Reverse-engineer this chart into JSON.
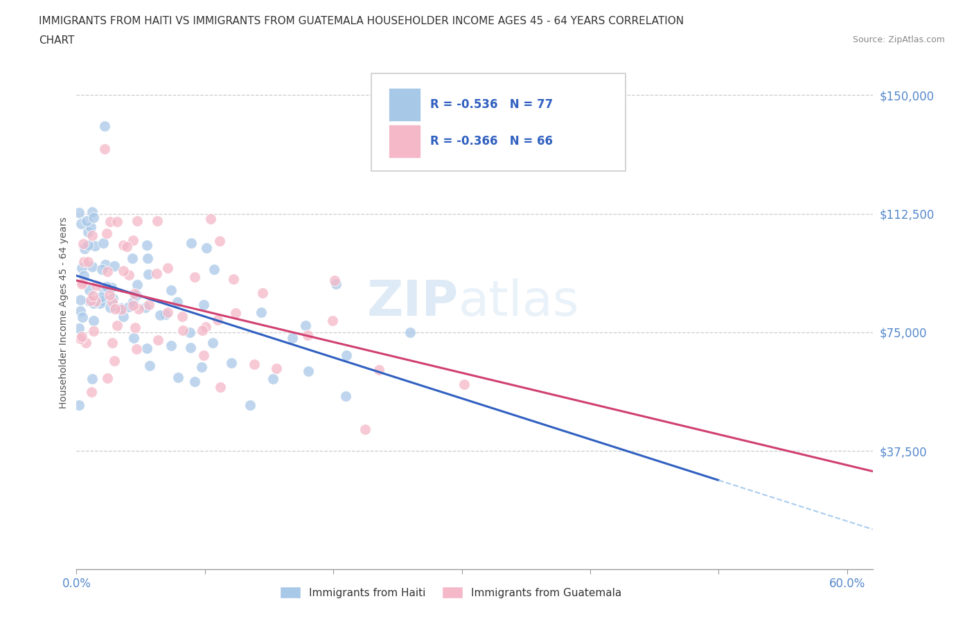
{
  "title_line1": "IMMIGRANTS FROM HAITI VS IMMIGRANTS FROM GUATEMALA HOUSEHOLDER INCOME AGES 45 - 64 YEARS CORRELATION",
  "title_line2": "CHART",
  "source_text": "Source: ZipAtlas.com",
  "ylabel": "Householder Income Ages 45 - 64 years",
  "xlim": [
    0.0,
    0.62
  ],
  "ylim": [
    0,
    162500
  ],
  "haiti_color": "#a8c8e8",
  "haiti_line_color": "#3060c0",
  "guatemala_color": "#f4b8c8",
  "guatemala_line_color": "#d04070",
  "haiti_R": -0.536,
  "haiti_N": 77,
  "guatemala_R": -0.366,
  "guatemala_N": 66,
  "bottom_legend_haiti": "Immigrants from Haiti",
  "bottom_legend_guatemala": "Immigrants from Guatemala",
  "watermark_zip": "ZIP",
  "watermark_atlas": "atlas",
  "yticklabels": [
    "",
    "$37,500",
    "$75,000",
    "$112,500",
    "$150,000"
  ],
  "ytick_values": [
    0,
    37500,
    75000,
    112500,
    150000
  ]
}
